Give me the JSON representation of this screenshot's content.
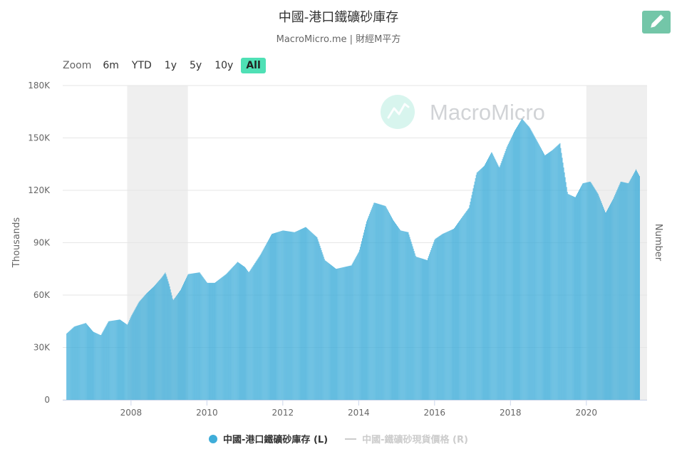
{
  "header": {
    "title": "中國-港口鐵礦砂庫存",
    "subtitle": "MacroMicro.me | 財經M平方"
  },
  "toolbar": {
    "edit_icon": "pencil-icon",
    "zoom_label": "Zoom",
    "zoom_buttons": [
      "6m",
      "YTD",
      "1y",
      "5y",
      "10y",
      "All"
    ],
    "active_zoom": "All"
  },
  "watermark": {
    "text": "MacroMicro",
    "icon": "macromicro-logo-icon"
  },
  "chart_data": {
    "type": "bar",
    "title": "中國-港口鐵礦砂庫存",
    "subtitle": "MacroMicro.me | 財經M平方",
    "ylabel_left": "Thousands",
    "ylabel_right": "Number",
    "ylim": [
      0,
      180000
    ],
    "yticks": [
      0,
      30000,
      60000,
      90000,
      120000,
      150000,
      180000
    ],
    "ytick_labels": [
      "0",
      "30K",
      "60K",
      "90K",
      "120K",
      "150K",
      "180K"
    ],
    "xlim": [
      2006.2,
      2021.6
    ],
    "xticks": [
      2008,
      2010,
      2012,
      2014,
      2016,
      2018,
      2020
    ],
    "xtick_labels": [
      "2008",
      "2010",
      "2012",
      "2014",
      "2016",
      "2018",
      "2020"
    ],
    "shaded_periods": [
      [
        2007.9,
        2009.5
      ],
      [
        2020.0,
        2021.6
      ]
    ],
    "grid": true,
    "legend_position": "bottom-center",
    "colors": {
      "series": "#3fadd9",
      "shade": "#efefef",
      "grid": "#e6e6e6",
      "inactive": "#cccccc"
    },
    "series": [
      {
        "name": "中國-港口鐵礦砂庫存 (L)",
        "visible": true,
        "points": [
          [
            2006.3,
            38000
          ],
          [
            2006.5,
            42000
          ],
          [
            2006.8,
            44000
          ],
          [
            2007.0,
            39000
          ],
          [
            2007.2,
            37000
          ],
          [
            2007.4,
            45000
          ],
          [
            2007.7,
            46000
          ],
          [
            2007.9,
            43000
          ],
          [
            2008.0,
            48000
          ],
          [
            2008.2,
            56000
          ],
          [
            2008.4,
            61000
          ],
          [
            2008.6,
            65000
          ],
          [
            2008.8,
            70000
          ],
          [
            2008.9,
            73000
          ],
          [
            2009.0,
            66000
          ],
          [
            2009.1,
            57000
          ],
          [
            2009.3,
            63000
          ],
          [
            2009.5,
            72000
          ],
          [
            2009.8,
            73000
          ],
          [
            2010.0,
            67000
          ],
          [
            2010.2,
            67000
          ],
          [
            2010.5,
            72000
          ],
          [
            2010.8,
            79000
          ],
          [
            2011.0,
            76000
          ],
          [
            2011.1,
            73000
          ],
          [
            2011.4,
            83000
          ],
          [
            2011.7,
            95000
          ],
          [
            2012.0,
            97000
          ],
          [
            2012.3,
            96000
          ],
          [
            2012.6,
            99000
          ],
          [
            2012.9,
            93000
          ],
          [
            2013.1,
            80000
          ],
          [
            2013.4,
            75000
          ],
          [
            2013.8,
            77000
          ],
          [
            2014.0,
            85000
          ],
          [
            2014.2,
            102000
          ],
          [
            2014.4,
            113000
          ],
          [
            2014.7,
            111000
          ],
          [
            2014.9,
            103000
          ],
          [
            2015.1,
            97000
          ],
          [
            2015.3,
            96000
          ],
          [
            2015.5,
            82000
          ],
          [
            2015.8,
            80000
          ],
          [
            2016.0,
            92000
          ],
          [
            2016.2,
            95000
          ],
          [
            2016.5,
            98000
          ],
          [
            2016.7,
            104000
          ],
          [
            2016.9,
            110000
          ],
          [
            2017.1,
            130000
          ],
          [
            2017.3,
            134000
          ],
          [
            2017.5,
            142000
          ],
          [
            2017.7,
            133000
          ],
          [
            2017.9,
            145000
          ],
          [
            2018.1,
            154000
          ],
          [
            2018.3,
            161000
          ],
          [
            2018.5,
            156000
          ],
          [
            2018.7,
            148000
          ],
          [
            2018.9,
            140000
          ],
          [
            2019.1,
            143000
          ],
          [
            2019.3,
            147000
          ],
          [
            2019.5,
            118000
          ],
          [
            2019.7,
            116000
          ],
          [
            2019.9,
            124000
          ],
          [
            2020.1,
            125000
          ],
          [
            2020.3,
            118000
          ],
          [
            2020.5,
            107000
          ],
          [
            2020.7,
            115000
          ],
          [
            2020.9,
            125000
          ],
          [
            2021.1,
            124000
          ],
          [
            2021.3,
            132000
          ],
          [
            2021.4,
            128000
          ]
        ]
      },
      {
        "name": "中國-鐵礦砂現貨價格 (R)",
        "visible": false,
        "points": []
      }
    ]
  },
  "legend": {
    "items": [
      {
        "label": "中國-港口鐵礦砂庫存 (L)",
        "state": "active"
      },
      {
        "label": "中國-鐵礦砂現貨價格 (R)",
        "state": "inactive"
      }
    ]
  }
}
